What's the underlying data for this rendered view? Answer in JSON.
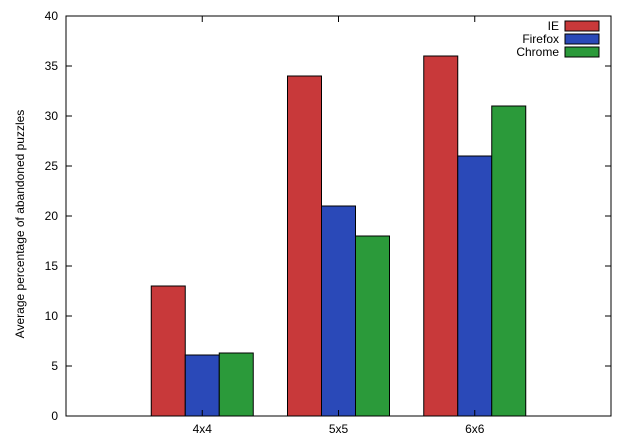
{
  "chart_data": {
    "type": "bar",
    "title": "",
    "xlabel": "",
    "ylabel": "Average percentage of abandoned puzzles",
    "ylim": [
      0,
      40
    ],
    "yticks": [
      0,
      5,
      10,
      15,
      20,
      25,
      30,
      35,
      40
    ],
    "categories": [
      "4x4",
      "5x5",
      "6x6"
    ],
    "series": [
      {
        "name": "IE",
        "color": "#c8393a",
        "values": [
          13,
          34,
          36
        ]
      },
      {
        "name": "Firefox",
        "color": "#2a49b8",
        "values": [
          6.1,
          21,
          26
        ]
      },
      {
        "name": "Chrome",
        "color": "#2b9a3a",
        "values": [
          6.3,
          18,
          31
        ]
      }
    ],
    "legend": {
      "position": "top-right"
    },
    "grid": false
  }
}
